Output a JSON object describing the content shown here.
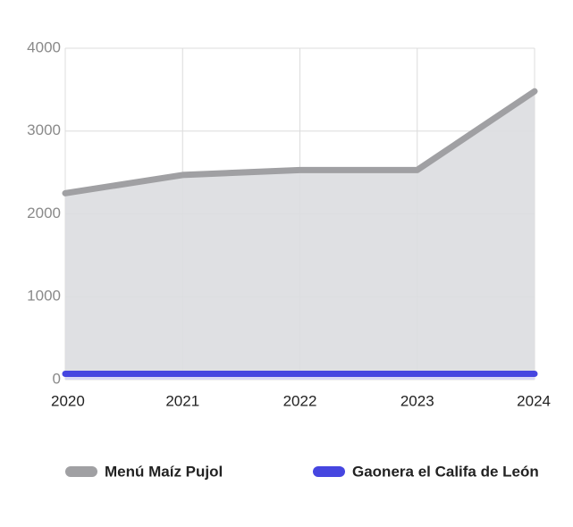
{
  "chart_data": {
    "type": "area",
    "categories": [
      "2020",
      "2021",
      "2022",
      "2023",
      "2024"
    ],
    "series": [
      {
        "name": "Menú Maíz Pujol",
        "color": "#a0a0a3",
        "fill": "#dcdde0",
        "values": [
          2250,
          2470,
          2530,
          2530,
          3480
        ]
      },
      {
        "name": "Gaonera el Califa de León",
        "color": "#4646e0",
        "fill": "#d8d8f6",
        "values": [
          70,
          70,
          70,
          70,
          70
        ]
      }
    ],
    "ylim": [
      0,
      4000
    ],
    "yticks": [
      0,
      1000,
      2000,
      3000,
      4000
    ],
    "grid": true
  }
}
